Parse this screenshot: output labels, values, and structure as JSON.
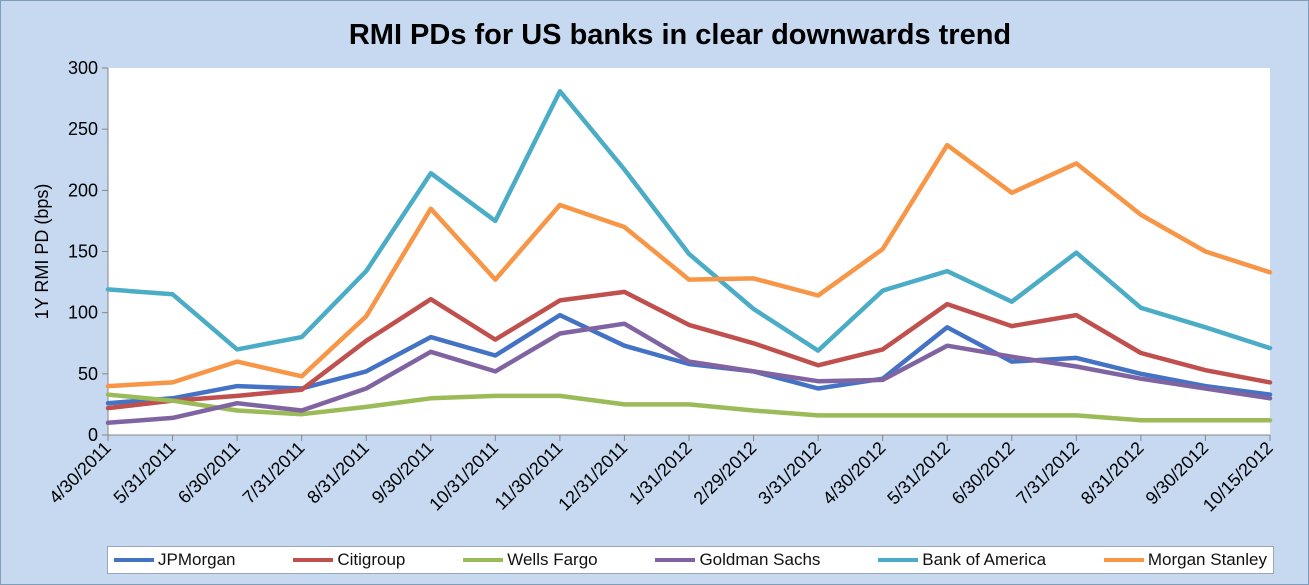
{
  "chart_data": {
    "type": "line",
    "title": "RMI PDs for US banks in clear downwards trend",
    "ylabel": "1Y RMI PD (bps)",
    "xlabel": "",
    "ylim": [
      0,
      300
    ],
    "yticks": [
      "0",
      "50",
      "100",
      "150",
      "200",
      "250",
      "300"
    ],
    "grid": false,
    "legend_position": "bottom",
    "categories": [
      "4/30/2011",
      "5/31/2011",
      "6/30/2011",
      "7/31/2011",
      "8/31/2011",
      "9/30/2011",
      "10/31/2011",
      "11/30/2011",
      "12/31/2011",
      "1/31/2012",
      "2/29/2012",
      "3/31/2012",
      "4/30/2012",
      "5/31/2012",
      "6/30/2012",
      "7/31/2012",
      "8/31/2012",
      "9/30/2012",
      "10/15/2012"
    ],
    "series": [
      {
        "name": "JPMorgan",
        "color": "#4472c4",
        "values": [
          26,
          30,
          40,
          38,
          52,
          80,
          65,
          98,
          73,
          58,
          52,
          38,
          46,
          88,
          60,
          63,
          50,
          40,
          33
        ]
      },
      {
        "name": "Citigroup",
        "color": "#c0504d",
        "values": [
          22,
          28,
          32,
          37,
          77,
          111,
          78,
          110,
          117,
          90,
          75,
          57,
          70,
          107,
          89,
          98,
          67,
          53,
          43
        ]
      },
      {
        "name": "Wells Fargo",
        "color": "#9bbb59",
        "values": [
          33,
          28,
          20,
          17,
          23,
          30,
          32,
          32,
          25,
          25,
          20,
          16,
          16,
          16,
          16,
          16,
          12,
          12,
          12
        ]
      },
      {
        "name": "Goldman Sachs",
        "color": "#8064a2",
        "values": [
          10,
          14,
          26,
          20,
          38,
          68,
          52,
          83,
          91,
          60,
          52,
          44,
          45,
          73,
          64,
          56,
          46,
          38,
          30
        ]
      },
      {
        "name": "Bank of America",
        "color": "#4bacc6",
        "values": [
          119,
          115,
          70,
          80,
          134,
          214,
          175,
          281,
          217,
          148,
          103,
          69,
          118,
          134,
          109,
          149,
          104,
          88,
          71
        ]
      },
      {
        "name": "Morgan Stanley",
        "color": "#f79646",
        "values": [
          40,
          43,
          60,
          48,
          97,
          185,
          127,
          188,
          170,
          127,
          128,
          114,
          152,
          237,
          198,
          222,
          180,
          150,
          133
        ]
      }
    ]
  }
}
